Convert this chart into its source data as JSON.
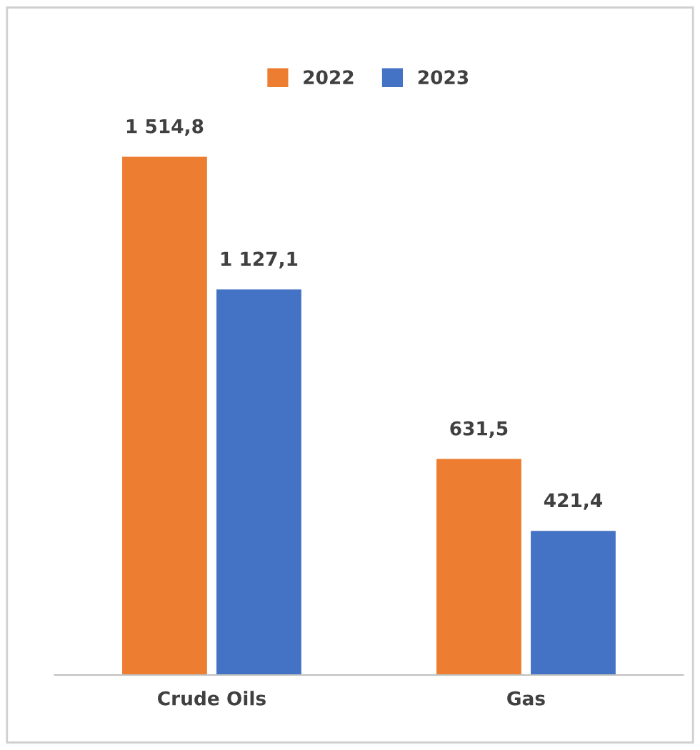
{
  "chart_data": {
    "type": "bar",
    "categories": [
      "Crude Oils",
      "Gas"
    ],
    "series": [
      {
        "name": "2022",
        "color": "#ed7d31",
        "values": [
          1514.8,
          631.5
        ],
        "value_labels": [
          "1 514,8",
          "631,5"
        ]
      },
      {
        "name": "2023",
        "color": "#4472c4",
        "values": [
          1127.1,
          421.4
        ],
        "value_labels": [
          "1 127,1",
          "421,4"
        ]
      }
    ],
    "tick_labels": "x",
    "legend": "top"
  }
}
